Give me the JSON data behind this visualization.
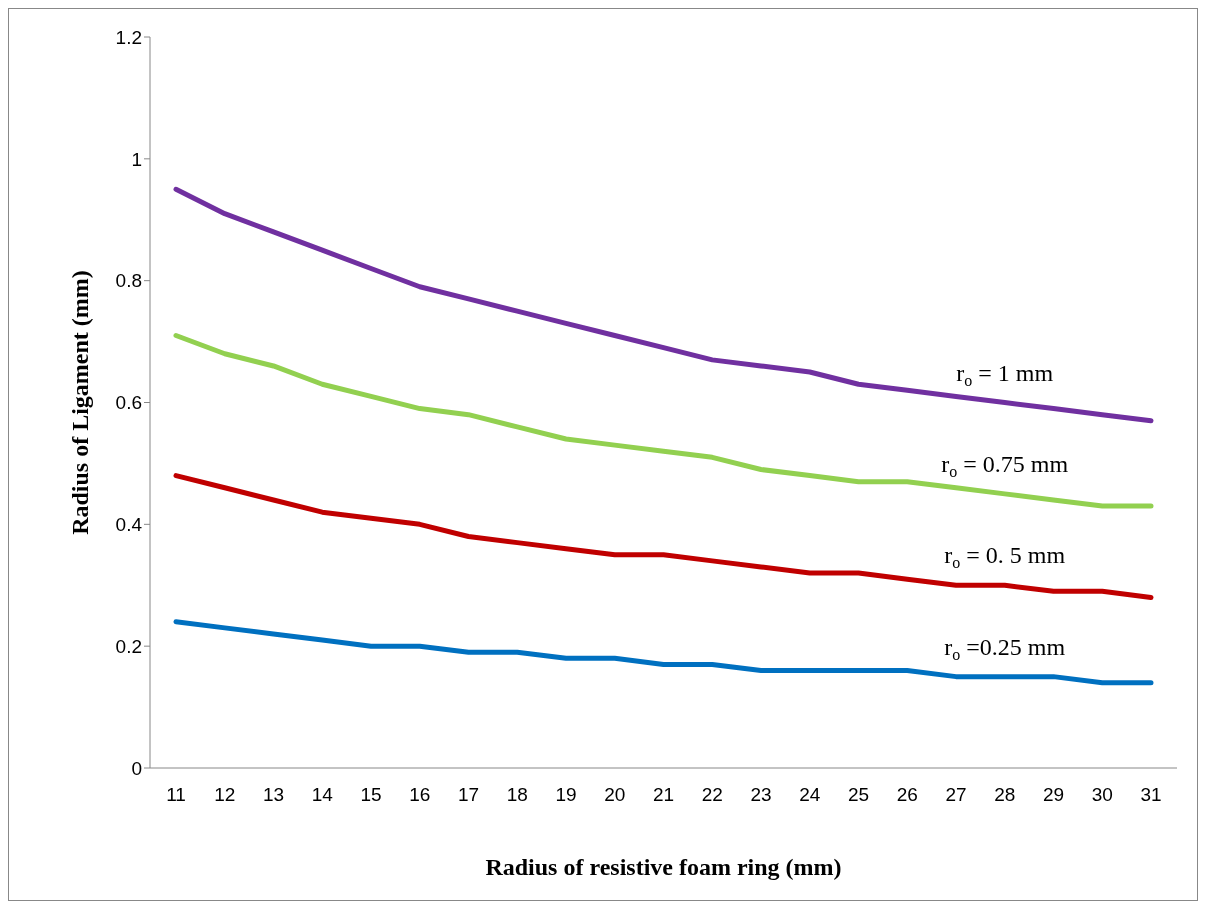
{
  "chart_data": {
    "type": "line",
    "xlabel": "Radius of resistive foam ring (mm)",
    "ylabel": "Radius of Ligament (mm)",
    "categories": [
      "11",
      "12",
      "13",
      "14",
      "15",
      "16",
      "17",
      "18",
      "19",
      "20",
      "21",
      "22",
      "23",
      "24",
      "25",
      "26",
      "27",
      "28",
      "29",
      "30",
      "31"
    ],
    "ylim": [
      0,
      1.2
    ],
    "yticks": [
      0,
      0.2,
      0.4,
      0.6,
      0.8,
      1,
      1.2
    ],
    "grid": false,
    "legend": false,
    "marker": "none",
    "line_style": "solid",
    "series": [
      {
        "name": "r$_{o}$ = 1 mm",
        "color": "#7030a0",
        "values": [
          0.95,
          0.91,
          0.88,
          0.85,
          0.82,
          0.79,
          0.77,
          0.75,
          0.73,
          0.71,
          0.69,
          0.67,
          0.66,
          0.65,
          0.63,
          0.62,
          0.61,
          0.6,
          0.59,
          0.58,
          0.57
        ]
      },
      {
        "name": "r$_{o}$ = 0.75 mm",
        "color": "#92d050",
        "values": [
          0.71,
          0.68,
          0.66,
          0.63,
          0.61,
          0.59,
          0.58,
          0.56,
          0.54,
          0.53,
          0.52,
          0.51,
          0.49,
          0.48,
          0.47,
          0.47,
          0.46,
          0.45,
          0.44,
          0.43,
          0.43
        ]
      },
      {
        "name": "r$_{o}$ = 0. 5 mm",
        "color": "#c00000",
        "values": [
          0.48,
          0.46,
          0.44,
          0.42,
          0.41,
          0.4,
          0.38,
          0.37,
          0.36,
          0.35,
          0.35,
          0.34,
          0.33,
          0.32,
          0.32,
          0.31,
          0.3,
          0.3,
          0.29,
          0.29,
          0.28
        ]
      },
      {
        "name": "r$_{o}$ =0.25 mm",
        "color": "#0070c0",
        "values": [
          0.24,
          0.23,
          0.22,
          0.21,
          0.2,
          0.2,
          0.19,
          0.19,
          0.18,
          0.18,
          0.17,
          0.17,
          0.16,
          0.16,
          0.16,
          0.16,
          0.15,
          0.15,
          0.15,
          0.14,
          0.14
        ]
      }
    ]
  }
}
